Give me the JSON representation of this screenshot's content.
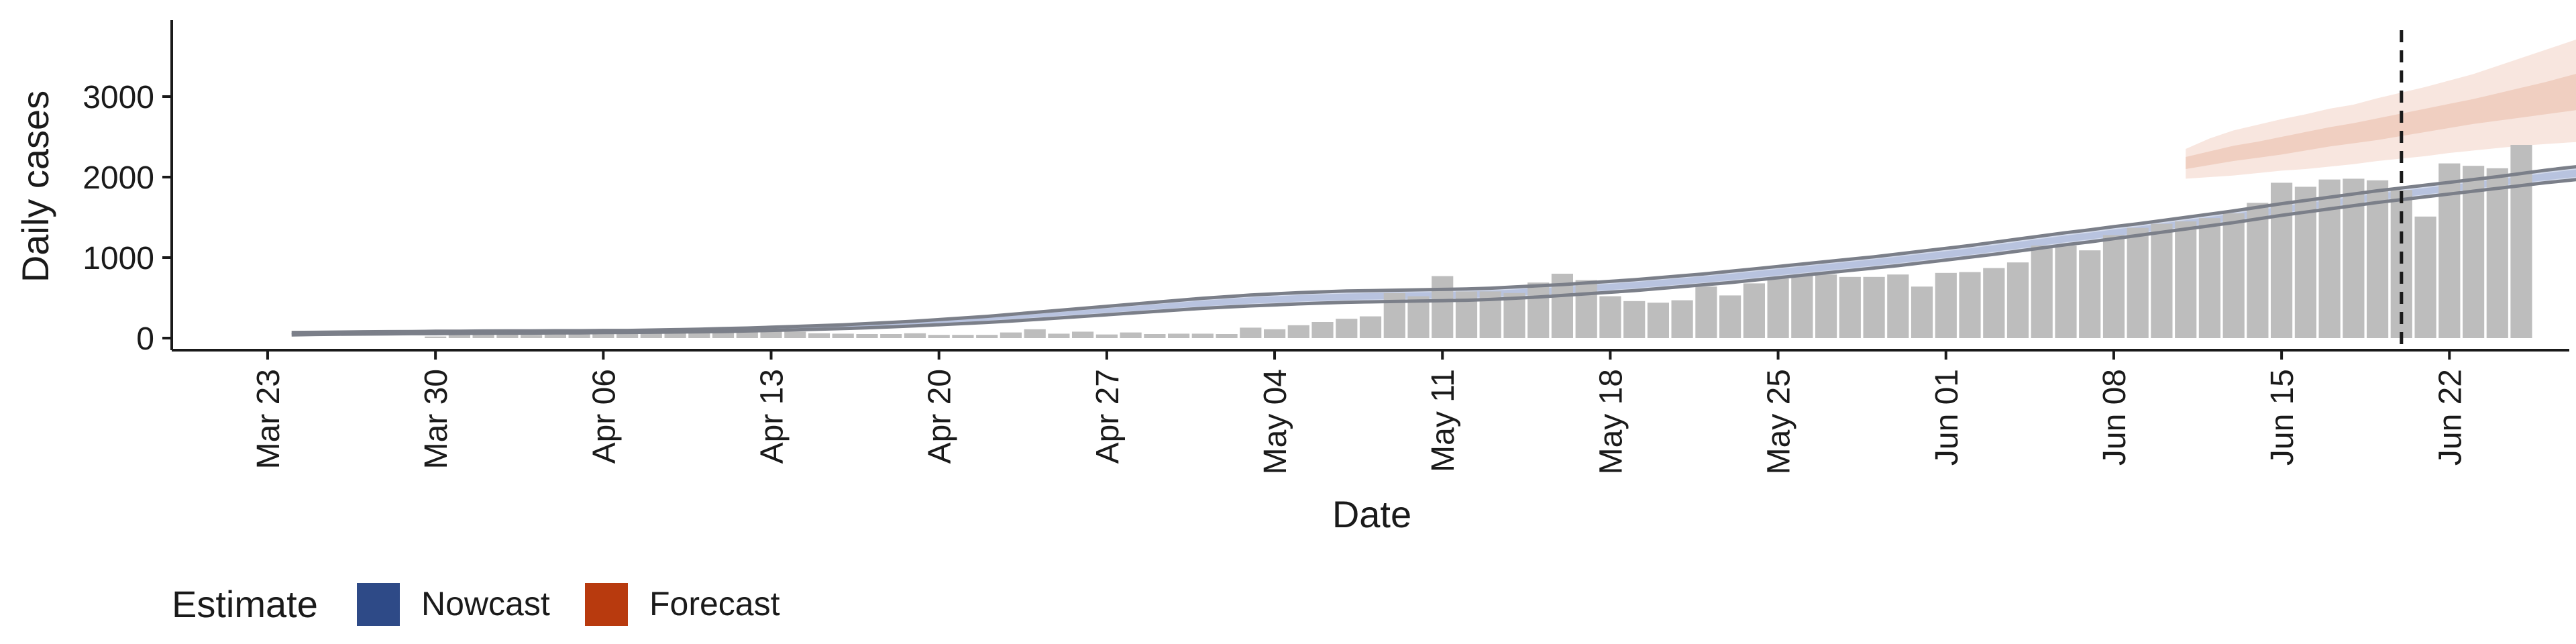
{
  "chart_data": {
    "type": "bar",
    "xlabel": "Date",
    "ylabel": "Daily cases",
    "ylim": [
      -150,
      3950
    ],
    "yticks": [
      0,
      1000,
      2000,
      3000
    ],
    "xticks": [
      "2020-03-23",
      "2020-03-30",
      "2020-04-06",
      "2020-04-13",
      "2020-04-20",
      "2020-04-27",
      "2020-05-04",
      "2020-05-11",
      "2020-05-18",
      "2020-05-25",
      "2020-06-01",
      "2020-06-08",
      "2020-06-15",
      "2020-06-22"
    ],
    "xtick_labels": [
      "Mar 23",
      "Mar 30",
      "Apr 06",
      "Apr 13",
      "Apr 20",
      "Apr 27",
      "May 04",
      "May 11",
      "May 18",
      "May 25",
      "Jun 01",
      "Jun 08",
      "Jun 15",
      "Jun 22"
    ],
    "xlim": [
      "2020-03-19",
      "2020-06-27"
    ],
    "cutoff_date": "2020-06-20",
    "grid": false,
    "legend_placement": "bottom-left",
    "legend": {
      "title": "Estimate",
      "entries": [
        {
          "label": "Nowcast",
          "color": "#2e4a87"
        },
        {
          "label": "Forecast",
          "color": "#b83a0e"
        }
      ]
    },
    "colors": {
      "bars": "#bdbdbd",
      "nowcast_band": "#d4dbec",
      "nowcast_inner": "#b8c3df",
      "nowcast_outline": "#7b7f89",
      "forecast_band": "#f8e6df",
      "forecast_inner": "#f0cfc1",
      "cutoff_line": "#1a1a1a"
    },
    "bars": {
      "start_date": "2020-03-30",
      "values": [
        20,
        60,
        80,
        90,
        40,
        80,
        85,
        60,
        85,
        70,
        85,
        75,
        80,
        75,
        90,
        80,
        60,
        55,
        50,
        50,
        60,
        40,
        40,
        40,
        70,
        110,
        55,
        80,
        45,
        70,
        50,
        55,
        55,
        50,
        130,
        110,
        160,
        200,
        240,
        270,
        560,
        520,
        770,
        580,
        580,
        560,
        690,
        800,
        720,
        520,
        460,
        440,
        470,
        640,
        530,
        680,
        740,
        780,
        790,
        760,
        760,
        790,
        640,
        810,
        820,
        870,
        940,
        1150,
        1150,
        1090,
        1280,
        1370,
        1420,
        1450,
        1490,
        1550,
        1680,
        1930,
        1880,
        1970,
        1980,
        1960,
        1840,
        1510,
        2170,
        2140,
        2110,
        2400
      ]
    },
    "nowcast": {
      "start_date": "2020-03-24",
      "upper": [
        70,
        72,
        75,
        78,
        80,
        82,
        85,
        85,
        88,
        90,
        90,
        92,
        92,
        95,
        95,
        100,
        105,
        110,
        118,
        125,
        135,
        145,
        155,
        165,
        180,
        195,
        210,
        230,
        250,
        270,
        295,
        320,
        345,
        370,
        395,
        420,
        445,
        470,
        495,
        515,
        535,
        550,
        565,
        575,
        585,
        590,
        595,
        600,
        605,
        610,
        620,
        635,
        650,
        665,
        685,
        705,
        725,
        750,
        775,
        800,
        830,
        860,
        890,
        920,
        950,
        980,
        1010,
        1045,
        1080,
        1115,
        1150,
        1190,
        1230,
        1270,
        1310,
        1345,
        1385,
        1420,
        1460,
        1500,
        1540,
        1580,
        1625,
        1670,
        1710,
        1750,
        1790,
        1830,
        1865,
        1900,
        1935,
        1970,
        2005,
        2045,
        2085,
        2120,
        2150,
        2185,
        2220,
        2255,
        2300
      ],
      "lower": [
        40,
        45,
        48,
        50,
        52,
        55,
        55,
        58,
        60,
        62,
        62,
        65,
        65,
        68,
        70,
        72,
        75,
        78,
        82,
        88,
        95,
        102,
        110,
        118,
        128,
        140,
        152,
        166,
        180,
        195,
        212,
        230,
        250,
        270,
        290,
        310,
        330,
        350,
        370,
        385,
        400,
        412,
        425,
        435,
        445,
        450,
        455,
        460,
        465,
        470,
        480,
        495,
        510,
        530,
        550,
        570,
        590,
        615,
        640,
        665,
        690,
        720,
        750,
        780,
        810,
        840,
        870,
        900,
        935,
        970,
        1005,
        1040,
        1080,
        1120,
        1160,
        1195,
        1235,
        1275,
        1315,
        1355,
        1395,
        1435,
        1480,
        1525,
        1565,
        1605,
        1645,
        1685,
        1720,
        1755,
        1790,
        1825,
        1860,
        1895,
        1930,
        1960,
        1990,
        2020,
        2050,
        2080,
        2110
      ],
      "inner_upper": [
        60,
        62,
        65,
        68,
        70,
        72,
        75,
        75,
        78,
        80,
        80,
        82,
        82,
        85,
        85,
        90,
        95,
        100,
        106,
        112,
        122,
        132,
        142,
        152,
        166,
        180,
        194,
        212,
        232,
        250,
        274,
        298,
        322,
        346,
        370,
        394,
        418,
        442,
        466,
        485,
        505,
        519,
        533,
        543,
        553,
        558,
        563,
        568,
        573,
        578,
        588,
        603,
        618,
        635,
        655,
        675,
        695,
        720,
        745,
        770,
        798,
        828,
        858,
        888,
        918,
        948,
        978,
        1012,
        1046,
        1080,
        1114,
        1154,
        1194,
        1234,
        1274,
        1309,
        1349,
        1384,
        1424,
        1464,
        1504,
        1544,
        1589,
        1634,
        1674,
        1714,
        1754,
        1794,
        1829,
        1864,
        1899,
        1934,
        1969,
        2009,
        2049,
        2084,
        2114,
        2149,
        2184,
        2219,
        2260
      ],
      "inner_lower": [
        50,
        52,
        55,
        58,
        60,
        62,
        65,
        65,
        68,
        70,
        70,
        72,
        72,
        75,
        75,
        80,
        85,
        90,
        96,
        102,
        110,
        118,
        126,
        134,
        145,
        158,
        170,
        186,
        202,
        218,
        236,
        256,
        276,
        296,
        316,
        336,
        356,
        376,
        396,
        412,
        428,
        441,
        454,
        464,
        474,
        479,
        484,
        489,
        494,
        499,
        509,
        524,
        539,
        558,
        578,
        598,
        618,
        643,
        668,
        693,
        720,
        750,
        780,
        810,
        840,
        870,
        900,
        932,
        966,
        1000,
        1034,
        1072,
        1112,
        1152,
        1192,
        1227,
        1267,
        1305,
        1345,
        1385,
        1425,
        1465,
        1510,
        1555,
        1595,
        1635,
        1675,
        1715,
        1750,
        1785,
        1820,
        1855,
        1890,
        1926,
        1962,
        1993,
        2023,
        2055,
        2086,
        2117,
        2150
      ]
    },
    "forecast": {
      "start_date": "2020-06-11",
      "upper": [
        2350,
        2480,
        2580,
        2650,
        2720,
        2780,
        2850,
        2900,
        2980,
        3050,
        3120,
        3200,
        3280,
        3380,
        3480,
        3580,
        3680,
        3780
      ],
      "lower": [
        1980,
        2000,
        2020,
        2050,
        2080,
        2100,
        2130,
        2160,
        2200,
        2230,
        2260,
        2300,
        2330,
        2360,
        2390,
        2410,
        2430,
        2450
      ],
      "inner_upper": [
        2250,
        2320,
        2390,
        2440,
        2500,
        2560,
        2620,
        2670,
        2730,
        2790,
        2850,
        2910,
        2970,
        3040,
        3110,
        3180,
        3260,
        3340
      ],
      "inner_lower": [
        2100,
        2150,
        2200,
        2240,
        2280,
        2330,
        2380,
        2420,
        2460,
        2510,
        2560,
        2610,
        2660,
        2700,
        2740,
        2780,
        2820,
        2860
      ]
    }
  }
}
